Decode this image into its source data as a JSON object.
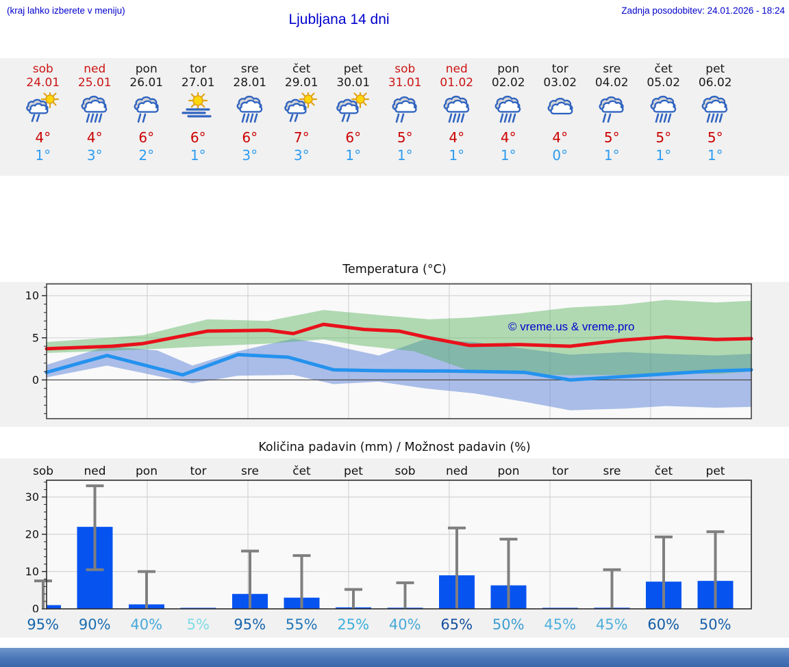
{
  "header": {
    "hint": "(kraj lahko izberete v meniju)",
    "title": "Ljubljana 14 dni",
    "updated": "Zadnja posodobitev: 24.01.2026 - 18:24"
  },
  "colors": {
    "header_text": "#0000cd",
    "weekend_red": "#cc1414",
    "tmax_red": "#cc0000",
    "tmin_blue": "#2d9cf0",
    "strip_background": "#f1f1f1",
    "plot_background": "#f9f9f9"
  },
  "days": [
    {
      "name": "sob",
      "date": "24.01",
      "weekend": true,
      "icon": "sun-cloud-rain",
      "tmax": "4°",
      "tmin": "1°"
    },
    {
      "name": "ned",
      "date": "25.01",
      "weekend": true,
      "icon": "clouds-rain",
      "tmax": "4°",
      "tmin": "3°"
    },
    {
      "name": "pon",
      "date": "26.01",
      "weekend": false,
      "icon": "clouds-rain-light",
      "tmax": "6°",
      "tmin": "2°"
    },
    {
      "name": "tor",
      "date": "27.01",
      "weekend": false,
      "icon": "sun-fog",
      "tmax": "6°",
      "tmin": "1°"
    },
    {
      "name": "sre",
      "date": "28.01",
      "weekend": false,
      "icon": "clouds-rain",
      "tmax": "6°",
      "tmin": "3°"
    },
    {
      "name": "čet",
      "date": "29.01",
      "weekend": false,
      "icon": "sun-cloud-rain",
      "tmax": "7°",
      "tmin": "3°"
    },
    {
      "name": "pet",
      "date": "30.01",
      "weekend": false,
      "icon": "sun-cloud-rain",
      "tmax": "6°",
      "tmin": "1°"
    },
    {
      "name": "sob",
      "date": "31.01",
      "weekend": true,
      "icon": "clouds-rain-light",
      "tmax": "5°",
      "tmin": "1°"
    },
    {
      "name": "ned",
      "date": "01.02",
      "weekend": true,
      "icon": "clouds-rain",
      "tmax": "4°",
      "tmin": "1°"
    },
    {
      "name": "pon",
      "date": "02.02",
      "weekend": false,
      "icon": "clouds-rain",
      "tmax": "4°",
      "tmin": "1°"
    },
    {
      "name": "tor",
      "date": "03.02",
      "weekend": false,
      "icon": "clouds",
      "tmax": "4°",
      "tmin": "0°"
    },
    {
      "name": "sre",
      "date": "04.02",
      "weekend": false,
      "icon": "clouds-rain-light",
      "tmax": "5°",
      "tmin": "1°"
    },
    {
      "name": "čet",
      "date": "05.02",
      "weekend": false,
      "icon": "clouds-rain",
      "tmax": "5°",
      "tmin": "1°"
    },
    {
      "name": "pet",
      "date": "06.02",
      "weekend": false,
      "icon": "clouds-rain",
      "tmax": "5°",
      "tmin": "1°"
    }
  ],
  "chart_data": [
    {
      "type": "line",
      "title": "Temperatura (°C)",
      "watermark": "© vreme.us & vreme.pro",
      "x_unit": "days",
      "x_range": [
        0,
        14
      ],
      "ylim": [
        -4.6,
        11.4
      ],
      "yticks": [
        0,
        5,
        10
      ],
      "grid": true,
      "vgrid_days": [
        2,
        4,
        6,
        8,
        10,
        12
      ],
      "series": [
        {
          "name": "min temperature range",
          "type": "band",
          "color": "#5b82d8",
          "opacity": 0.5,
          "upper": [
            [
              0,
              1.8
            ],
            [
              1.2,
              4.0
            ],
            [
              2.2,
              3.5
            ],
            [
              2.9,
              1.7
            ],
            [
              3.8,
              3.4
            ],
            [
              4.9,
              4.9
            ],
            [
              5.6,
              4.2
            ],
            [
              6.6,
              2.9
            ],
            [
              7.5,
              4.8
            ],
            [
              8.5,
              4.5
            ],
            [
              9.5,
              3.7
            ],
            [
              10.4,
              3.0
            ],
            [
              11.5,
              3.3
            ],
            [
              12.3,
              3.1
            ],
            [
              13.3,
              2.9
            ],
            [
              14,
              3.1
            ]
          ],
          "lower": [
            [
              0,
              0.3
            ],
            [
              1.2,
              1.7
            ],
            [
              2.9,
              -0.4
            ],
            [
              3.8,
              0.5
            ],
            [
              4.9,
              0.6
            ],
            [
              5.7,
              -0.5
            ],
            [
              6.6,
              -0.2
            ],
            [
              7.5,
              -1.0
            ],
            [
              8.5,
              -1.6
            ],
            [
              9.5,
              -2.6
            ],
            [
              10.4,
              -3.6
            ],
            [
              11.5,
              -3.4
            ],
            [
              12.3,
              -3.1
            ],
            [
              13.3,
              -3.3
            ],
            [
              14,
              -3.2
            ]
          ]
        },
        {
          "name": "max temperature range",
          "type": "band",
          "color": "#4caf50",
          "opacity": 0.42,
          "upper": [
            [
              0,
              4.5
            ],
            [
              1.9,
              5.3
            ],
            [
              3.2,
              7.2
            ],
            [
              4.4,
              7.0
            ],
            [
              5.5,
              8.3
            ],
            [
              6.6,
              7.7
            ],
            [
              7.6,
              7.2
            ],
            [
              8.4,
              7.4
            ],
            [
              9.4,
              7.9
            ],
            [
              10.4,
              8.6
            ],
            [
              11.4,
              8.9
            ],
            [
              12.3,
              9.5
            ],
            [
              13.3,
              9.2
            ],
            [
              14,
              9.4
            ]
          ],
          "lower": [
            [
              0,
              3.2
            ],
            [
              1.9,
              3.6
            ],
            [
              3.2,
              4.0
            ],
            [
              4.4,
              4.3
            ],
            [
              5.5,
              4.8
            ],
            [
              6.2,
              4.1
            ],
            [
              7.3,
              3.4
            ],
            [
              8.4,
              1.1
            ],
            [
              9.4,
              0.7
            ],
            [
              10.4,
              0.55
            ],
            [
              11.4,
              0.6
            ],
            [
              12.3,
              0.85
            ],
            [
              13.3,
              0.7
            ],
            [
              14,
              1.0
            ]
          ]
        },
        {
          "name": "max temperature",
          "type": "line",
          "color": "#e8111b",
          "width": 5,
          "points": [
            [
              0,
              3.7
            ],
            [
              1.3,
              4.0
            ],
            [
              1.9,
              4.3
            ],
            [
              3.2,
              5.8
            ],
            [
              4.4,
              5.9
            ],
            [
              4.9,
              5.5
            ],
            [
              5.5,
              6.6
            ],
            [
              6.3,
              6.0
            ],
            [
              7.0,
              5.8
            ],
            [
              7.6,
              5.0
            ],
            [
              8.4,
              4.1
            ],
            [
              9.4,
              4.2
            ],
            [
              10.4,
              4.0
            ],
            [
              11.4,
              4.7
            ],
            [
              12.3,
              5.1
            ],
            [
              13.3,
              4.8
            ],
            [
              14,
              4.9
            ]
          ]
        },
        {
          "name": "min temperature",
          "type": "line",
          "color": "#2492ee",
          "width": 5,
          "points": [
            [
              0,
              0.9
            ],
            [
              1.2,
              2.9
            ],
            [
              2.7,
              0.6
            ],
            [
              3.8,
              3.0
            ],
            [
              4.8,
              2.7
            ],
            [
              5.7,
              1.2
            ],
            [
              6.6,
              1.1
            ],
            [
              8.0,
              1.05
            ],
            [
              9.5,
              0.9
            ],
            [
              10.4,
              0.0
            ],
            [
              12.0,
              0.6
            ],
            [
              13.2,
              1.05
            ],
            [
              14,
              1.2
            ]
          ]
        }
      ]
    },
    {
      "type": "bar",
      "title": "Količina padavin (mm) / Možnost padavin (%)",
      "categories": [
        "sob",
        "ned",
        "pon",
        "tor",
        "sre",
        "čet",
        "pet",
        "sob",
        "ned",
        "pon",
        "tor",
        "sre",
        "čet",
        "pet"
      ],
      "values": [
        1.0,
        22.0,
        1.2,
        0.15,
        4.0,
        3.0,
        0.4,
        0.3,
        9.0,
        6.3,
        0.15,
        0.3,
        7.3,
        7.5
      ],
      "whisker_low": [
        0,
        10.5,
        0,
        0,
        0,
        0,
        0,
        0,
        0,
        0,
        0,
        0,
        0,
        0
      ],
      "whisker_high": [
        7.5,
        33.0,
        10.0,
        0,
        15.5,
        14.3,
        5.2,
        7.0,
        21.7,
        18.7,
        0,
        10.5,
        19.3,
        20.7
      ],
      "pop_percent": [
        "95%",
        "90%",
        "40%",
        "5%",
        "95%",
        "55%",
        "25%",
        "40%",
        "65%",
        "50%",
        "45%",
        "45%",
        "60%",
        "50%"
      ],
      "pop_colors": [
        "#1565ac",
        "#1b6cb0",
        "#47a9d9",
        "#7fdde6",
        "#1565ac",
        "#2076ba",
        "#3dafdc",
        "#47a9d9",
        "#124f9e",
        "#3b9ed2",
        "#4fb0dc",
        "#4fb0dc",
        "#115aa6",
        "#155fa9"
      ],
      "ylim": [
        0,
        34.5
      ],
      "yticks": [
        0,
        10,
        20,
        30
      ],
      "grid": true,
      "vgrid_days": [
        2,
        4,
        6,
        8,
        10,
        12
      ],
      "bar_color": "#0653f0",
      "whisker_color": "#7f7f7f"
    }
  ]
}
